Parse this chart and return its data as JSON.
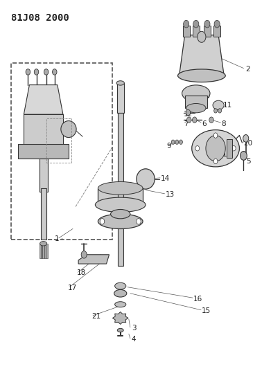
{
  "title": "81J08 2000",
  "bg_color": "#ffffff",
  "fig_width": 4.04,
  "fig_height": 5.33,
  "dpi": 100,
  "line_color": "#333333",
  "text_color": "#222222",
  "header_fontsize": 10,
  "label_fontsize": 7.5
}
